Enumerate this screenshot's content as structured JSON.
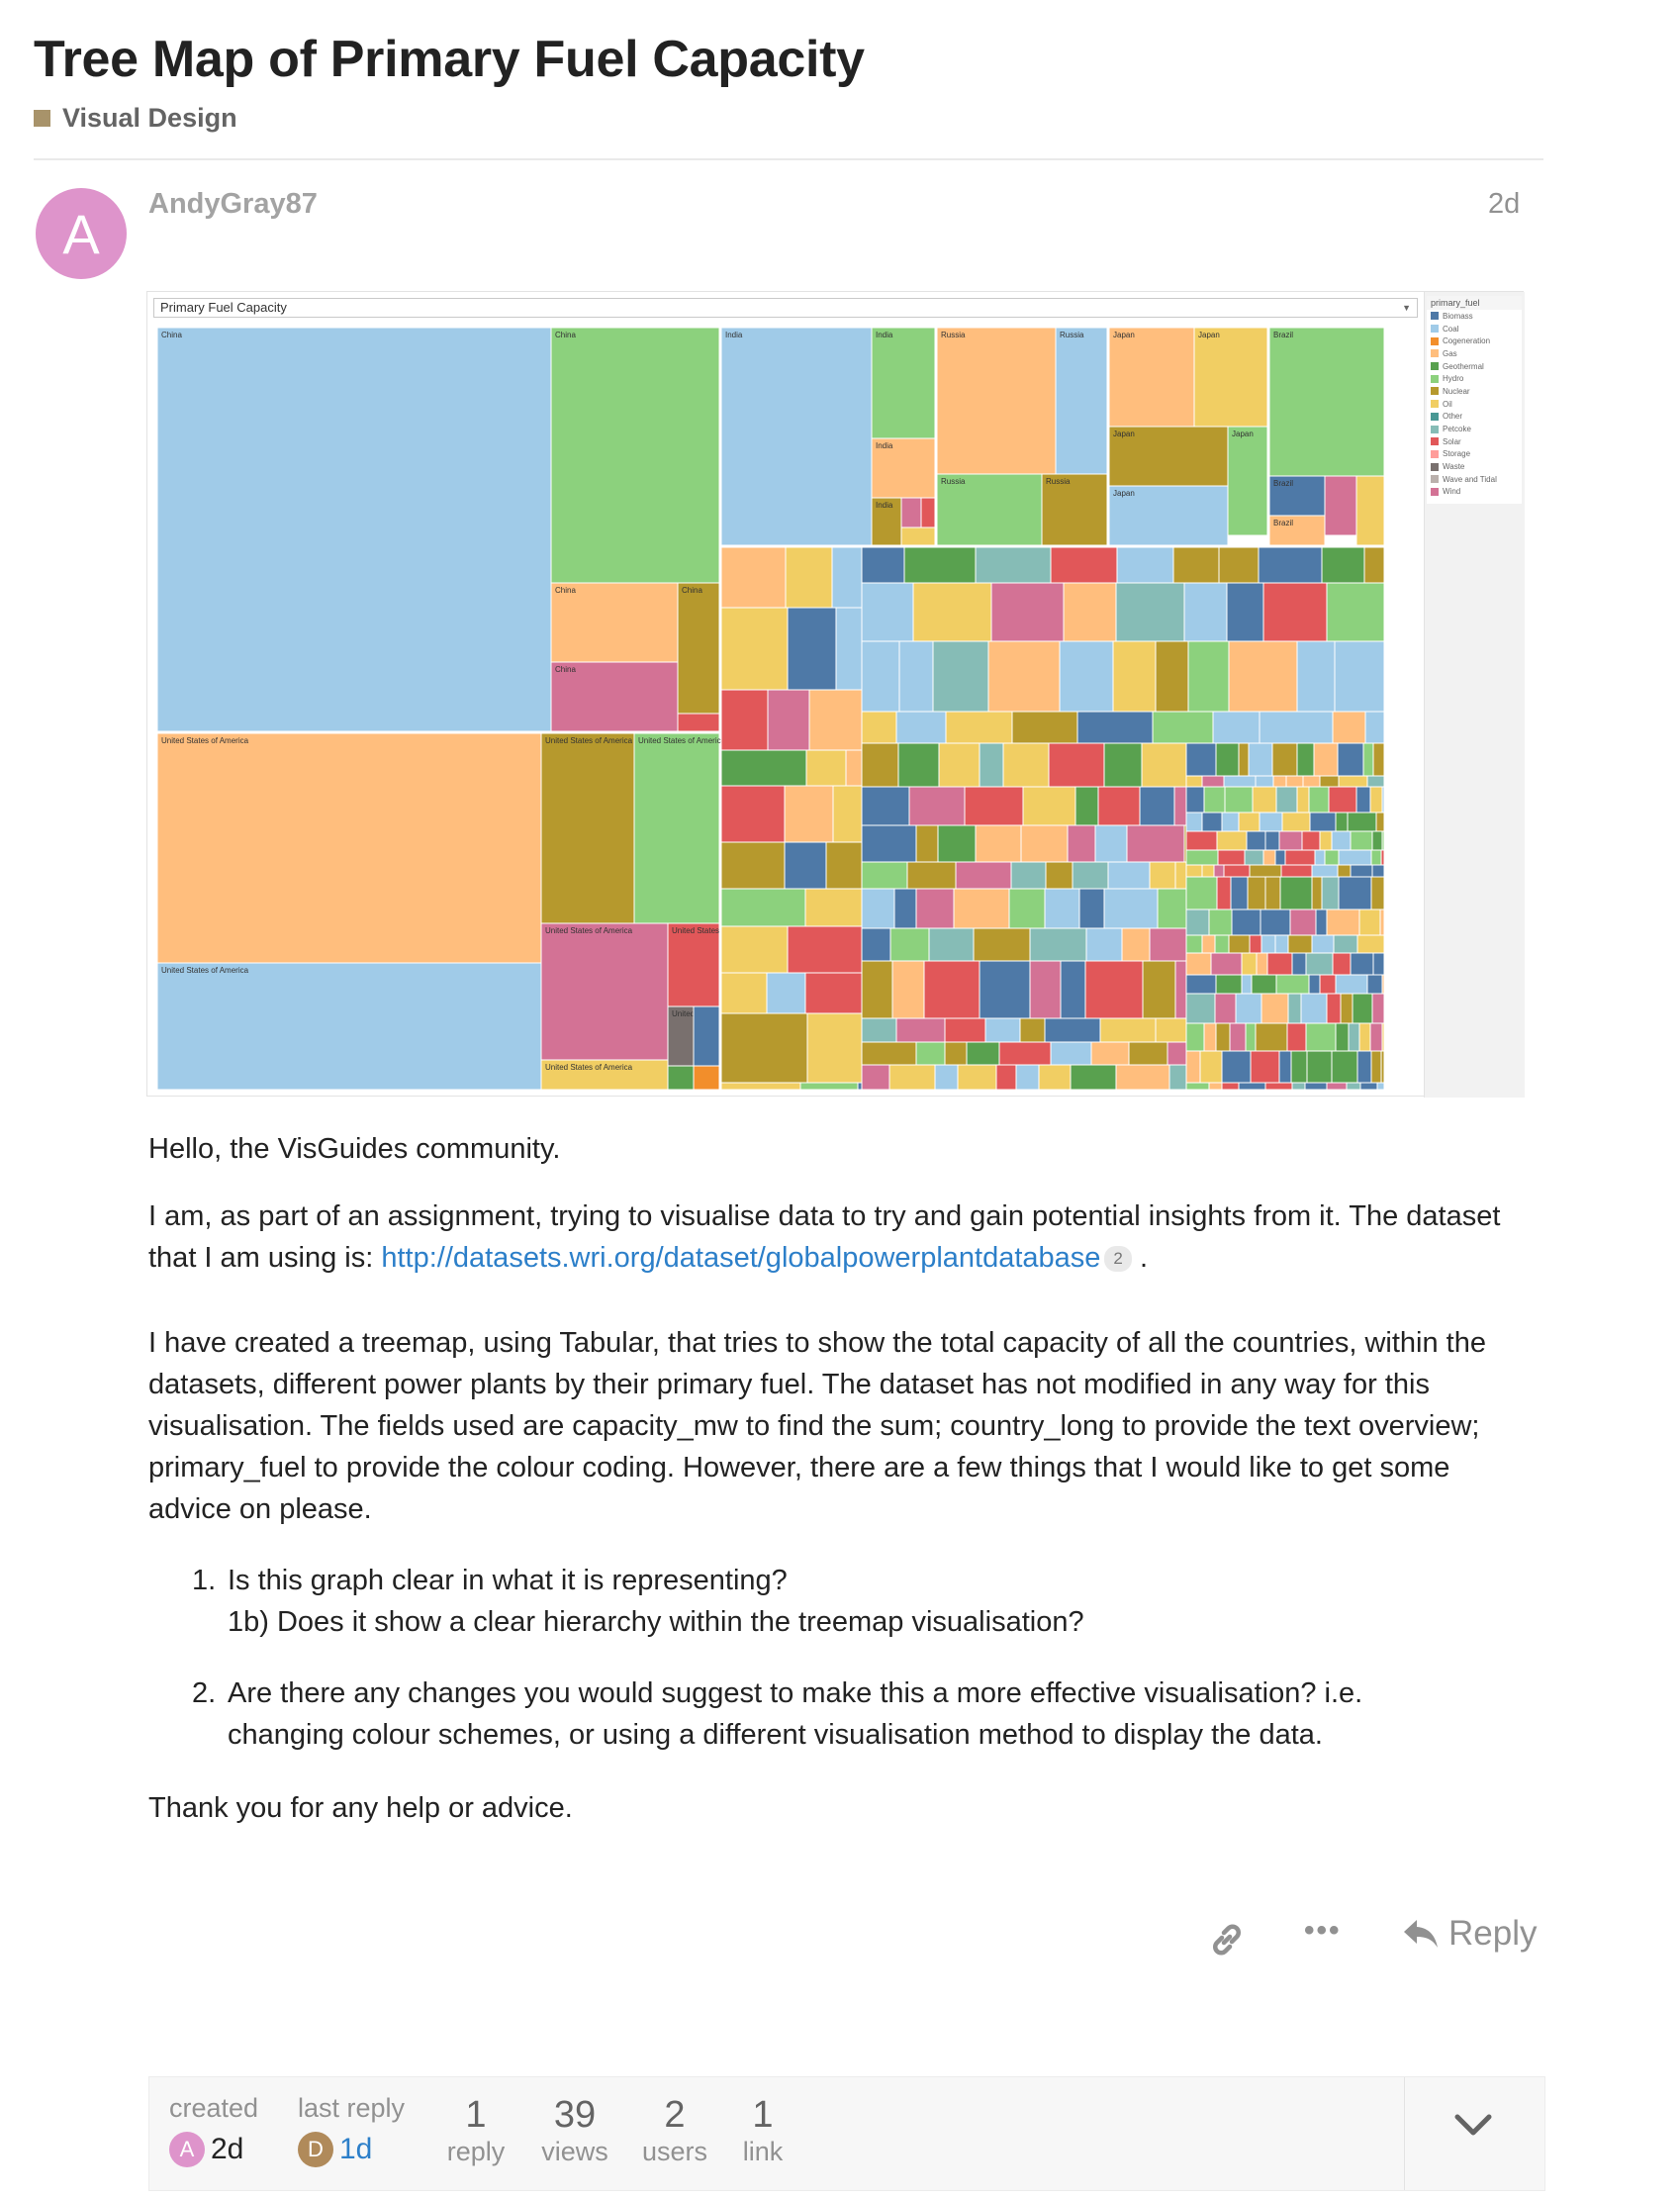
{
  "topic": {
    "title": "Tree Map of Primary Fuel Capacity",
    "category": "Visual Design",
    "category_color": "#A8936A"
  },
  "post": {
    "avatar_letter": "A",
    "avatar_color": "#DE94CB",
    "username": "AndyGray87",
    "date": "2d",
    "paragraph1": "Hello, the VisGuides community.",
    "paragraph2_before_link": "I am, as part of an assignment, trying to visualise data to try and gain potential insights from it. The dataset that I am using is: ",
    "link_text": "http://datasets.wri.org/dataset/globalpowerplantdatabase",
    "link_clicks": "2",
    "paragraph2_after_link": " .",
    "paragraph3": "I have created a treemap, using Tabular, that tries to show the total capacity of all the countries, within the datasets, different power plants by their primary fuel. The dataset has not modified in any way for this visualisation. The fields used are capacity_mw to find the sum; country_long to provide the text overview; primary_fuel to provide the colour coding. However, there are a few things that I would like to get some advice on please.",
    "list": [
      {
        "num": "1.",
        "line1": "Is this graph clear in what it is representing?",
        "line2": "1b) Does it show a clear hierarchy within the treemap visualisation?"
      },
      {
        "num": "2.",
        "line1": "Are there any changes you would suggest to make this a more effective visualisation? i.e.",
        "line2": "changing colour schemes, or using a different visualisation method to display the data."
      }
    ],
    "closing": "Thank you for any help or advice."
  },
  "actions": {
    "reply_label": "Reply",
    "more_label": "•••",
    "icon_link": "link-icon",
    "icon_reply": "reply-arrow-icon"
  },
  "meta": {
    "created_label": "created",
    "created_avatar": "A",
    "created_avatar_color": "#DE94CB",
    "created_when": "2d",
    "last_reply_label": "last reply",
    "last_reply_avatar": "D",
    "last_reply_avatar_color": "#B08A5A",
    "last_reply_when": "1d",
    "replies_count": "1",
    "replies_label": "reply",
    "views_count": "39",
    "views_label": "views",
    "users_count": "2",
    "users_label": "users",
    "links_count": "1",
    "links_label": "link"
  },
  "visualization": {
    "header_title": "Primary Fuel Capacity",
    "legend_title": "primary_fuel",
    "legend": [
      {
        "name": "Biomass",
        "color": "#4E79A7"
      },
      {
        "name": "Coal",
        "color": "#A0CBE8"
      },
      {
        "name": "Cogeneration",
        "color": "#F28E2B"
      },
      {
        "name": "Gas",
        "color": "#FFBE7D"
      },
      {
        "name": "Geothermal",
        "color": "#59A14F"
      },
      {
        "name": "Hydro",
        "color": "#8CD17D"
      },
      {
        "name": "Nuclear",
        "color": "#B6992D"
      },
      {
        "name": "Oil",
        "color": "#F1CE63"
      },
      {
        "name": "Other",
        "color": "#499894"
      },
      {
        "name": "Petcoke",
        "color": "#86BCB6"
      },
      {
        "name": "Solar",
        "color": "#E15759"
      },
      {
        "name": "Storage",
        "color": "#FF9D9A"
      },
      {
        "name": "Waste",
        "color": "#79706E"
      },
      {
        "name": "Wave and Tidal",
        "color": "#BAB0AC"
      },
      {
        "name": "Wind",
        "color": "#D37295"
      }
    ],
    "countries": [
      {
        "name": "China",
        "tiles": [
          [
            "China",
            "Coal"
          ],
          [
            "China",
            "Hydro"
          ],
          [
            "China",
            "Gas"
          ],
          [
            "China",
            "Nuclear"
          ],
          [
            "China",
            "Wind"
          ]
        ]
      },
      {
        "name": "United States of America",
        "tiles": [
          [
            "United States of America",
            "Gas"
          ],
          [
            "United States of America",
            "Coal"
          ],
          [
            "United States of America",
            "Nuclear"
          ],
          [
            "United States of America",
            "Hydro"
          ],
          [
            "United States of America",
            "Wind"
          ],
          [
            "United States of America",
            "Solar"
          ],
          [
            "United States of America",
            "Oil"
          ],
          [
            "United States of",
            "Waste"
          ]
        ]
      },
      {
        "name": "India",
        "tiles": [
          [
            "India",
            "Coal"
          ],
          [
            "India",
            "Hydro"
          ],
          [
            "India",
            "Gas"
          ],
          [
            "India",
            "Nuclear"
          ]
        ]
      },
      {
        "name": "Russia",
        "tiles": [
          [
            "Russia",
            "Gas"
          ],
          [
            "Russia",
            "Coal"
          ],
          [
            "Russia",
            "Hydro"
          ],
          [
            "Russia",
            "Nuclear"
          ]
        ]
      },
      {
        "name": "Japan",
        "tiles": [
          [
            "Japan",
            "Gas"
          ],
          [
            "Japan",
            "Oil"
          ],
          [
            "Japan",
            "Nuclear"
          ],
          [
            "Japan",
            "Hydro"
          ],
          [
            "Japan",
            "Coal"
          ]
        ]
      },
      {
        "name": "Brazil",
        "tiles": [
          [
            "Brazil",
            "Hydro"
          ],
          [
            "Brazil",
            "Biomass"
          ],
          [
            "Brazil",
            "Gas"
          ]
        ]
      }
    ]
  }
}
